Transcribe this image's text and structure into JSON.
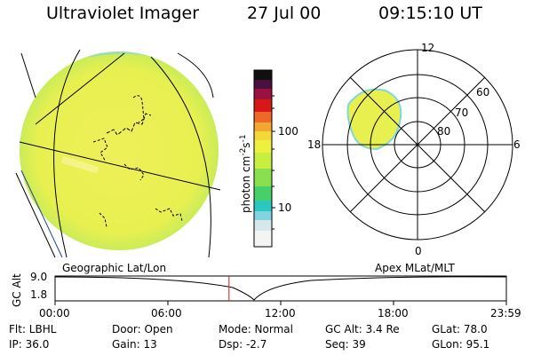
{
  "header": {
    "instrument": "Ultraviolet Imager",
    "date": "27 Jul 00",
    "time": "09:15:10 UT"
  },
  "colorbar": {
    "unit_label": "photon cm",
    "unit_sup1": "-2",
    "unit_s": "s",
    "unit_sup2": "-1",
    "tick_100": "100",
    "tick_10": "10",
    "colors_bottom_to_top": [
      "#f4f4f4",
      "#d6e8ec",
      "#7fd6e0",
      "#2cc8c0",
      "#48d068",
      "#88e050",
      "#c8ee40",
      "#eef040",
      "#f2d838",
      "#f2a830",
      "#ee6828",
      "#d81818",
      "#9a1040",
      "#4a1040",
      "#101010"
    ]
  },
  "polar_plot": {
    "mlt_12": "12",
    "mlt_18": "18",
    "mlt_6": "6",
    "mlt_0": "0",
    "lat_60": "60",
    "lat_70": "70",
    "lat_80": "80",
    "projection_label": "Apex MLat/MLT"
  },
  "image_panel": {
    "projection_label": "Geographic Lat/Lon"
  },
  "altitude_strip": {
    "axis_label": "GC Alt",
    "y_max": "9.0",
    "y_min": "1.8",
    "time_ticks": [
      "00:00",
      "06:00",
      "12:00",
      "18:00",
      "23:59"
    ],
    "current_time_marker_hour": 9.25
  },
  "footer": {
    "flt": "Flt: LBHL",
    "ip": "IP: 36.0",
    "door": "Door: Open",
    "gain": "Gain: 13",
    "mode": "Mode: Normal",
    "dsp": "Dsp:   -2.7",
    "gc_alt": "GC Alt: 3.4 Re",
    "seq": "Seq: 39",
    "glat": "GLat:  78.0",
    "glon": "GLon:  95.1"
  }
}
